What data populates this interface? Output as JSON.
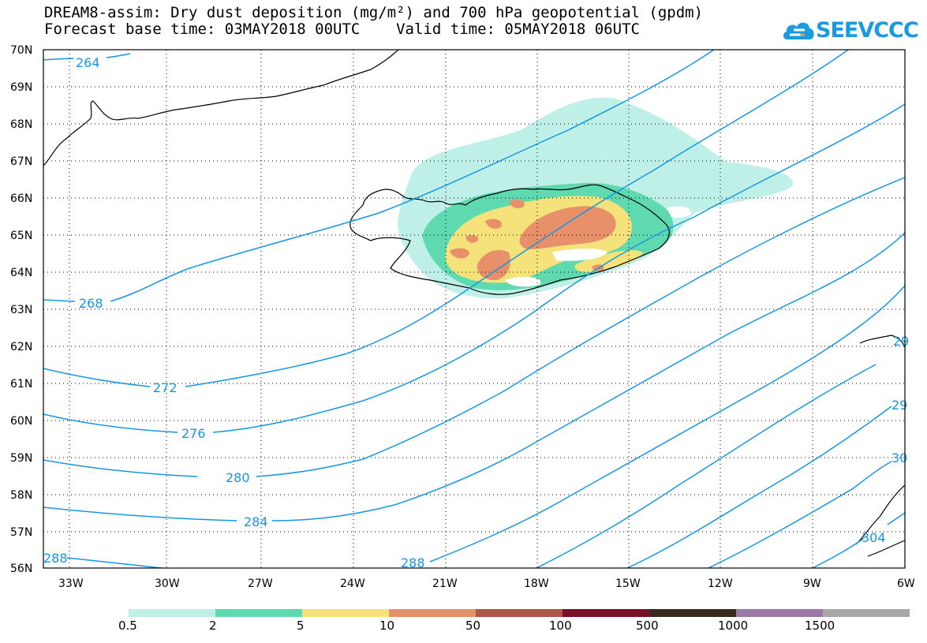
{
  "title_line1": "DREAM8-assim: Dry dust deposition (mg/m²) and 700 hPa geopotential (gpdm)",
  "title_line2": "Forecast base time: 03MAY2018 00UTC    Valid time: 05MAY2018 06UTC",
  "logo_text": "SEEVCCC",
  "colors": {
    "contour": "#1596e4",
    "grid": "#000000",
    "coast": "#000000"
  },
  "map": {
    "lat_labels": [
      "70N",
      "69N",
      "68N",
      "67N",
      "66N",
      "65N",
      "64N",
      "63N",
      "62N",
      "61N",
      "60N",
      "59N",
      "58N",
      "57N",
      "56N"
    ],
    "lon_labels": [
      "33W",
      "30W",
      "27W",
      "24W",
      "21W",
      "18W",
      "15W",
      "12W",
      "9W",
      "6W"
    ],
    "contour_labels": [
      "264",
      "268",
      "272",
      "276",
      "280",
      "284",
      "288",
      "288",
      "29",
      "29",
      "30",
      "304"
    ]
  },
  "legend": {
    "labels": [
      "0.5",
      "2",
      "5",
      "10",
      "50",
      "100",
      "500",
      "1000",
      "1500"
    ],
    "colors": [
      "#bff0e8",
      "#5fd9b0",
      "#f5e27a",
      "#e8906a",
      "#b0554a",
      "#7a0f2a",
      "#3a2a1e",
      "#9c7aa6",
      "#a8a8a8"
    ]
  }
}
